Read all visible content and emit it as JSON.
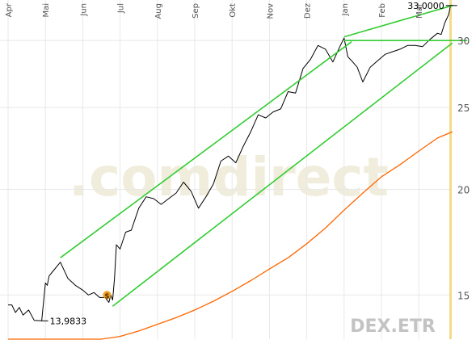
{
  "chart_data": {
    "type": "line",
    "x_ticks": [
      "Apr",
      "Mai",
      "Jun",
      "Jul",
      "Aug",
      "Sep",
      "Okt",
      "Nov",
      "Dez",
      "Jan",
      "Feb",
      "Mar"
    ],
    "y_ticks": [
      15,
      20,
      25,
      30
    ],
    "ylim": [
      13.3,
      33.5
    ],
    "y_scale": "log",
    "grid": true,
    "series": [
      {
        "color": "#000000",
        "x": [
          0,
          0.1,
          0.2,
          0.3,
          0.4,
          0.55,
          0.7,
          0.9,
          1.0,
          1.05,
          1.1,
          1.2,
          1.4,
          1.6,
          1.8,
          2.0,
          2.15,
          2.3,
          2.45,
          2.6,
          2.7,
          2.75,
          2.8,
          2.85,
          2.9,
          3.0,
          3.15,
          3.3,
          3.5,
          3.7,
          3.9,
          4.1,
          4.3,
          4.5,
          4.7,
          4.9,
          5.1,
          5.3,
          5.5,
          5.7,
          5.9,
          6.1,
          6.3,
          6.5,
          6.7,
          6.9,
          7.1,
          7.3,
          7.5,
          7.7,
          7.9,
          8.1,
          8.3,
          8.5,
          8.7,
          8.9,
          9.0,
          9.1,
          9.2,
          9.35,
          9.5,
          9.7,
          9.9,
          10.1,
          10.3,
          10.5,
          10.7,
          10.9,
          11.1,
          11.3,
          11.5,
          11.6,
          11.7,
          11.8,
          11.85,
          11.9
        ],
        "values": [
          14.6,
          14.6,
          14.3,
          14.5,
          14.2,
          14.4,
          14.0,
          13.98,
          15.5,
          15.4,
          15.8,
          16.0,
          16.4,
          15.7,
          15.4,
          15.2,
          15.0,
          15.1,
          14.9,
          14.9,
          14.7,
          15.0,
          14.8,
          15.7,
          17.2,
          17.0,
          17.8,
          17.9,
          19.0,
          19.6,
          19.5,
          19.2,
          19.5,
          19.8,
          20.4,
          19.9,
          19.0,
          19.6,
          20.3,
          21.6,
          21.9,
          21.5,
          22.5,
          23.4,
          24.5,
          24.3,
          24.7,
          24.9,
          26.1,
          26.0,
          27.8,
          28.5,
          29.6,
          29.3,
          28.3,
          29.6,
          30.2,
          28.7,
          28.4,
          27.9,
          26.8,
          27.9,
          28.4,
          28.9,
          29.1,
          29.3,
          29.6,
          29.6,
          29.5,
          30.1,
          30.6,
          30.5,
          31.5,
          32.2,
          33.0,
          33.0
        ]
      },
      {
        "color": "#ff6600",
        "x": [
          0,
          0.5,
          1,
          1.5,
          2,
          2.5,
          3,
          3.5,
          4,
          4.5,
          5,
          5.5,
          6,
          6.5,
          7,
          7.5,
          8,
          8.5,
          9,
          9.5,
          10,
          10.5,
          11,
          11.5,
          11.9
        ],
        "values": [
          13.3,
          13.3,
          13.3,
          13.3,
          13.3,
          13.3,
          13.4,
          13.6,
          13.85,
          14.1,
          14.4,
          14.75,
          15.15,
          15.6,
          16.1,
          16.6,
          17.25,
          18.0,
          18.9,
          19.8,
          20.7,
          21.4,
          22.2,
          23.0,
          23.4
        ]
      },
      {
        "color": "#33cc33",
        "x": [
          1.4,
          9.2
        ],
        "values": [
          16.6,
          29.9
        ]
      },
      {
        "color": "#33cc33",
        "x": [
          2.8,
          11.9
        ],
        "values": [
          14.55,
          29.8
        ]
      },
      {
        "color": "#33cc33",
        "x": [
          9.0,
          11.9
        ],
        "values": [
          30.3,
          33.0
        ]
      },
      {
        "color": "#33cc33",
        "x": [
          9.0,
          12.3
        ],
        "values": [
          30.0,
          30.0
        ]
      }
    ],
    "annotations": [
      "13,9833",
      "33,0000"
    ],
    "marker_label": "$",
    "watermark": ".comdirect",
    "symbol": "DEX.ETR",
    "colors": {
      "price": "#000000",
      "trend_channel": "#33cc33",
      "average": "#ff6600",
      "right_axis_band": "#f2dc8c",
      "grid": "#e8e8e8",
      "axis_text": "#555555"
    }
  }
}
